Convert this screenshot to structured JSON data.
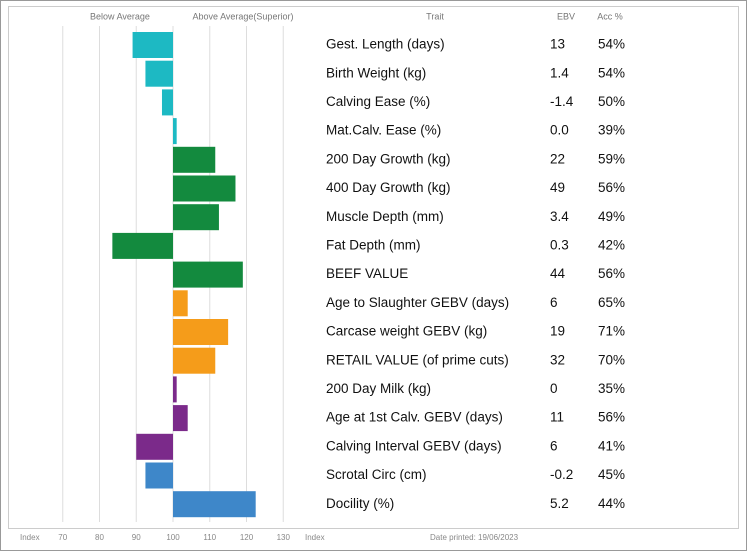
{
  "chart_data": {
    "type": "hbar",
    "headers": {
      "below": "Below Average",
      "above": "Above Average(Superior)",
      "trait": "Trait",
      "ebv": "EBV",
      "acc": "Acc %"
    },
    "categories": [
      "Gest. Length (days)",
      "Birth Weight (kg)",
      "Calving Ease (%)",
      "Mat.Calv. Ease (%)",
      "200 Day Growth (kg)",
      "400 Day Growth (kg)",
      "Muscle Depth (mm)",
      "Fat Depth (mm)",
      "BEEF VALUE",
      "Age to Slaughter GEBV (days)",
      "Carcase weight GEBV (kg)",
      "RETAIL VALUE (of prime cuts)",
      "200 Day Milk (kg)",
      "Age at 1st Calv. GEBV (days)",
      "Calving Interval GEBV (days)",
      "Scrotal Circ (cm)",
      "Docility (%)"
    ],
    "values": [
      89,
      92.5,
      97,
      101,
      111.5,
      117,
      112.5,
      83.5,
      119,
      104,
      115,
      111.5,
      101,
      104,
      90,
      92.5,
      122.5
    ],
    "colors": [
      "#1db9c3",
      "#1db9c3",
      "#1db9c3",
      "#1db9c3",
      "#138a3e",
      "#138a3e",
      "#138a3e",
      "#138a3e",
      "#138a3e",
      "#f59c1a",
      "#f59c1a",
      "#f59c1a",
      "#7b2a8a",
      "#7b2a8a",
      "#7b2a8a",
      "#3e87c9",
      "#3e87c9"
    ],
    "ebv": [
      "13",
      "1.4",
      "-1.4",
      "0.0",
      "22",
      "49",
      "3.4",
      "0.3",
      "44",
      "6",
      "19",
      "32",
      "0",
      "11",
      "6",
      "-0.2",
      "5.2"
    ],
    "acc": [
      "54%",
      "54%",
      "50%",
      "39%",
      "59%",
      "56%",
      "49%",
      "42%",
      "56%",
      "65%",
      "71%",
      "70%",
      "35%",
      "56%",
      "41%",
      "45%",
      "44%"
    ],
    "xlim": [
      60,
      140
    ],
    "xticks": [
      70,
      80,
      90,
      100,
      110,
      120,
      130
    ],
    "axis_label": "Index",
    "axis_label_right": "Index",
    "footer": "Date printed: 19/06/2023"
  }
}
